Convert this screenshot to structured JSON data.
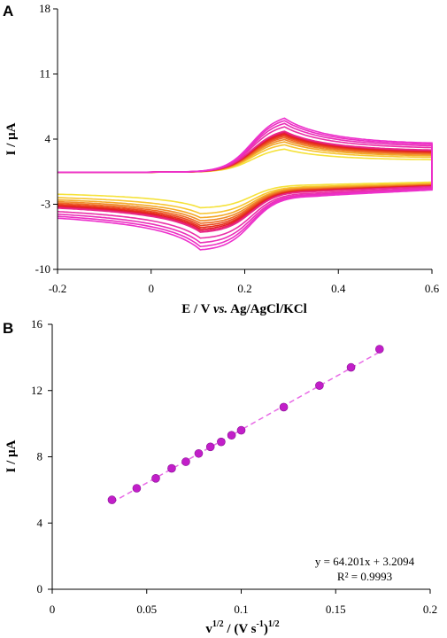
{
  "chart_data": [
    {
      "panel": "A",
      "type": "line",
      "xlabel_parts": {
        "a": "E / V ",
        "b": "vs.",
        "c": " Ag/AgCl/KCl"
      },
      "ylabel": "I / µA",
      "xlim": [
        -0.2,
        0.6
      ],
      "ylim": [
        -10,
        18
      ],
      "xticks": [
        "-0.2",
        "0",
        "0.2",
        "0.4",
        "0.6"
      ],
      "yticks": [
        "-10",
        "-3",
        "4",
        "11",
        "18"
      ],
      "grid": false,
      "scan_rates_sqrt": [
        0.0316,
        0.0447,
        0.0548,
        0.0632,
        0.0707,
        0.0775,
        0.0837,
        0.0894,
        0.0949,
        0.1,
        0.1225,
        0.1414,
        0.1581,
        0.1732
      ],
      "anodic_peak_potential": 0.285,
      "cathodic_peak_potential": 0.105,
      "crossover_potential": 0.215,
      "colors": [
        "#f5e23a",
        "#f7c531",
        "#f3a828",
        "#ee8a2a",
        "#ee6a24",
        "#e94a20",
        "#e6301c",
        "#e41d27",
        "#e61f5e",
        "#e8288a",
        "#ea30a8",
        "#ea2fb8",
        "#ec2fc2",
        "#ed31cc"
      ]
    },
    {
      "panel": "B",
      "type": "scatter",
      "xlabel_parts": {
        "a": "v",
        "b": "1/2",
        "c": " / (V s",
        "d": "-1",
        "e": ")",
        "f": "1/2"
      },
      "ylabel": "I / µA",
      "xlim": [
        0,
        0.2
      ],
      "ylim": [
        0,
        16
      ],
      "xticks": [
        "0",
        "0.05",
        "0.1",
        "0.15",
        "0.2"
      ],
      "yticks": [
        "0",
        "4",
        "8",
        "12",
        "16"
      ],
      "grid": false,
      "x": [
        0.0316,
        0.0447,
        0.0548,
        0.0632,
        0.0707,
        0.0775,
        0.0837,
        0.0894,
        0.0949,
        0.1,
        0.1225,
        0.1414,
        0.1581,
        0.1732
      ],
      "y": [
        5.4,
        6.1,
        6.7,
        7.3,
        7.7,
        8.2,
        8.6,
        8.9,
        9.3,
        9.6,
        11.0,
        12.3,
        13.4,
        14.5
      ],
      "fit": {
        "slope": 64.201,
        "intercept": 3.2094
      },
      "equation": "y = 64.201x + 3.2094",
      "r2": "R² = 0.9993",
      "marker_color": "#c21ec9",
      "fit_color": "#e86ae6"
    }
  ]
}
